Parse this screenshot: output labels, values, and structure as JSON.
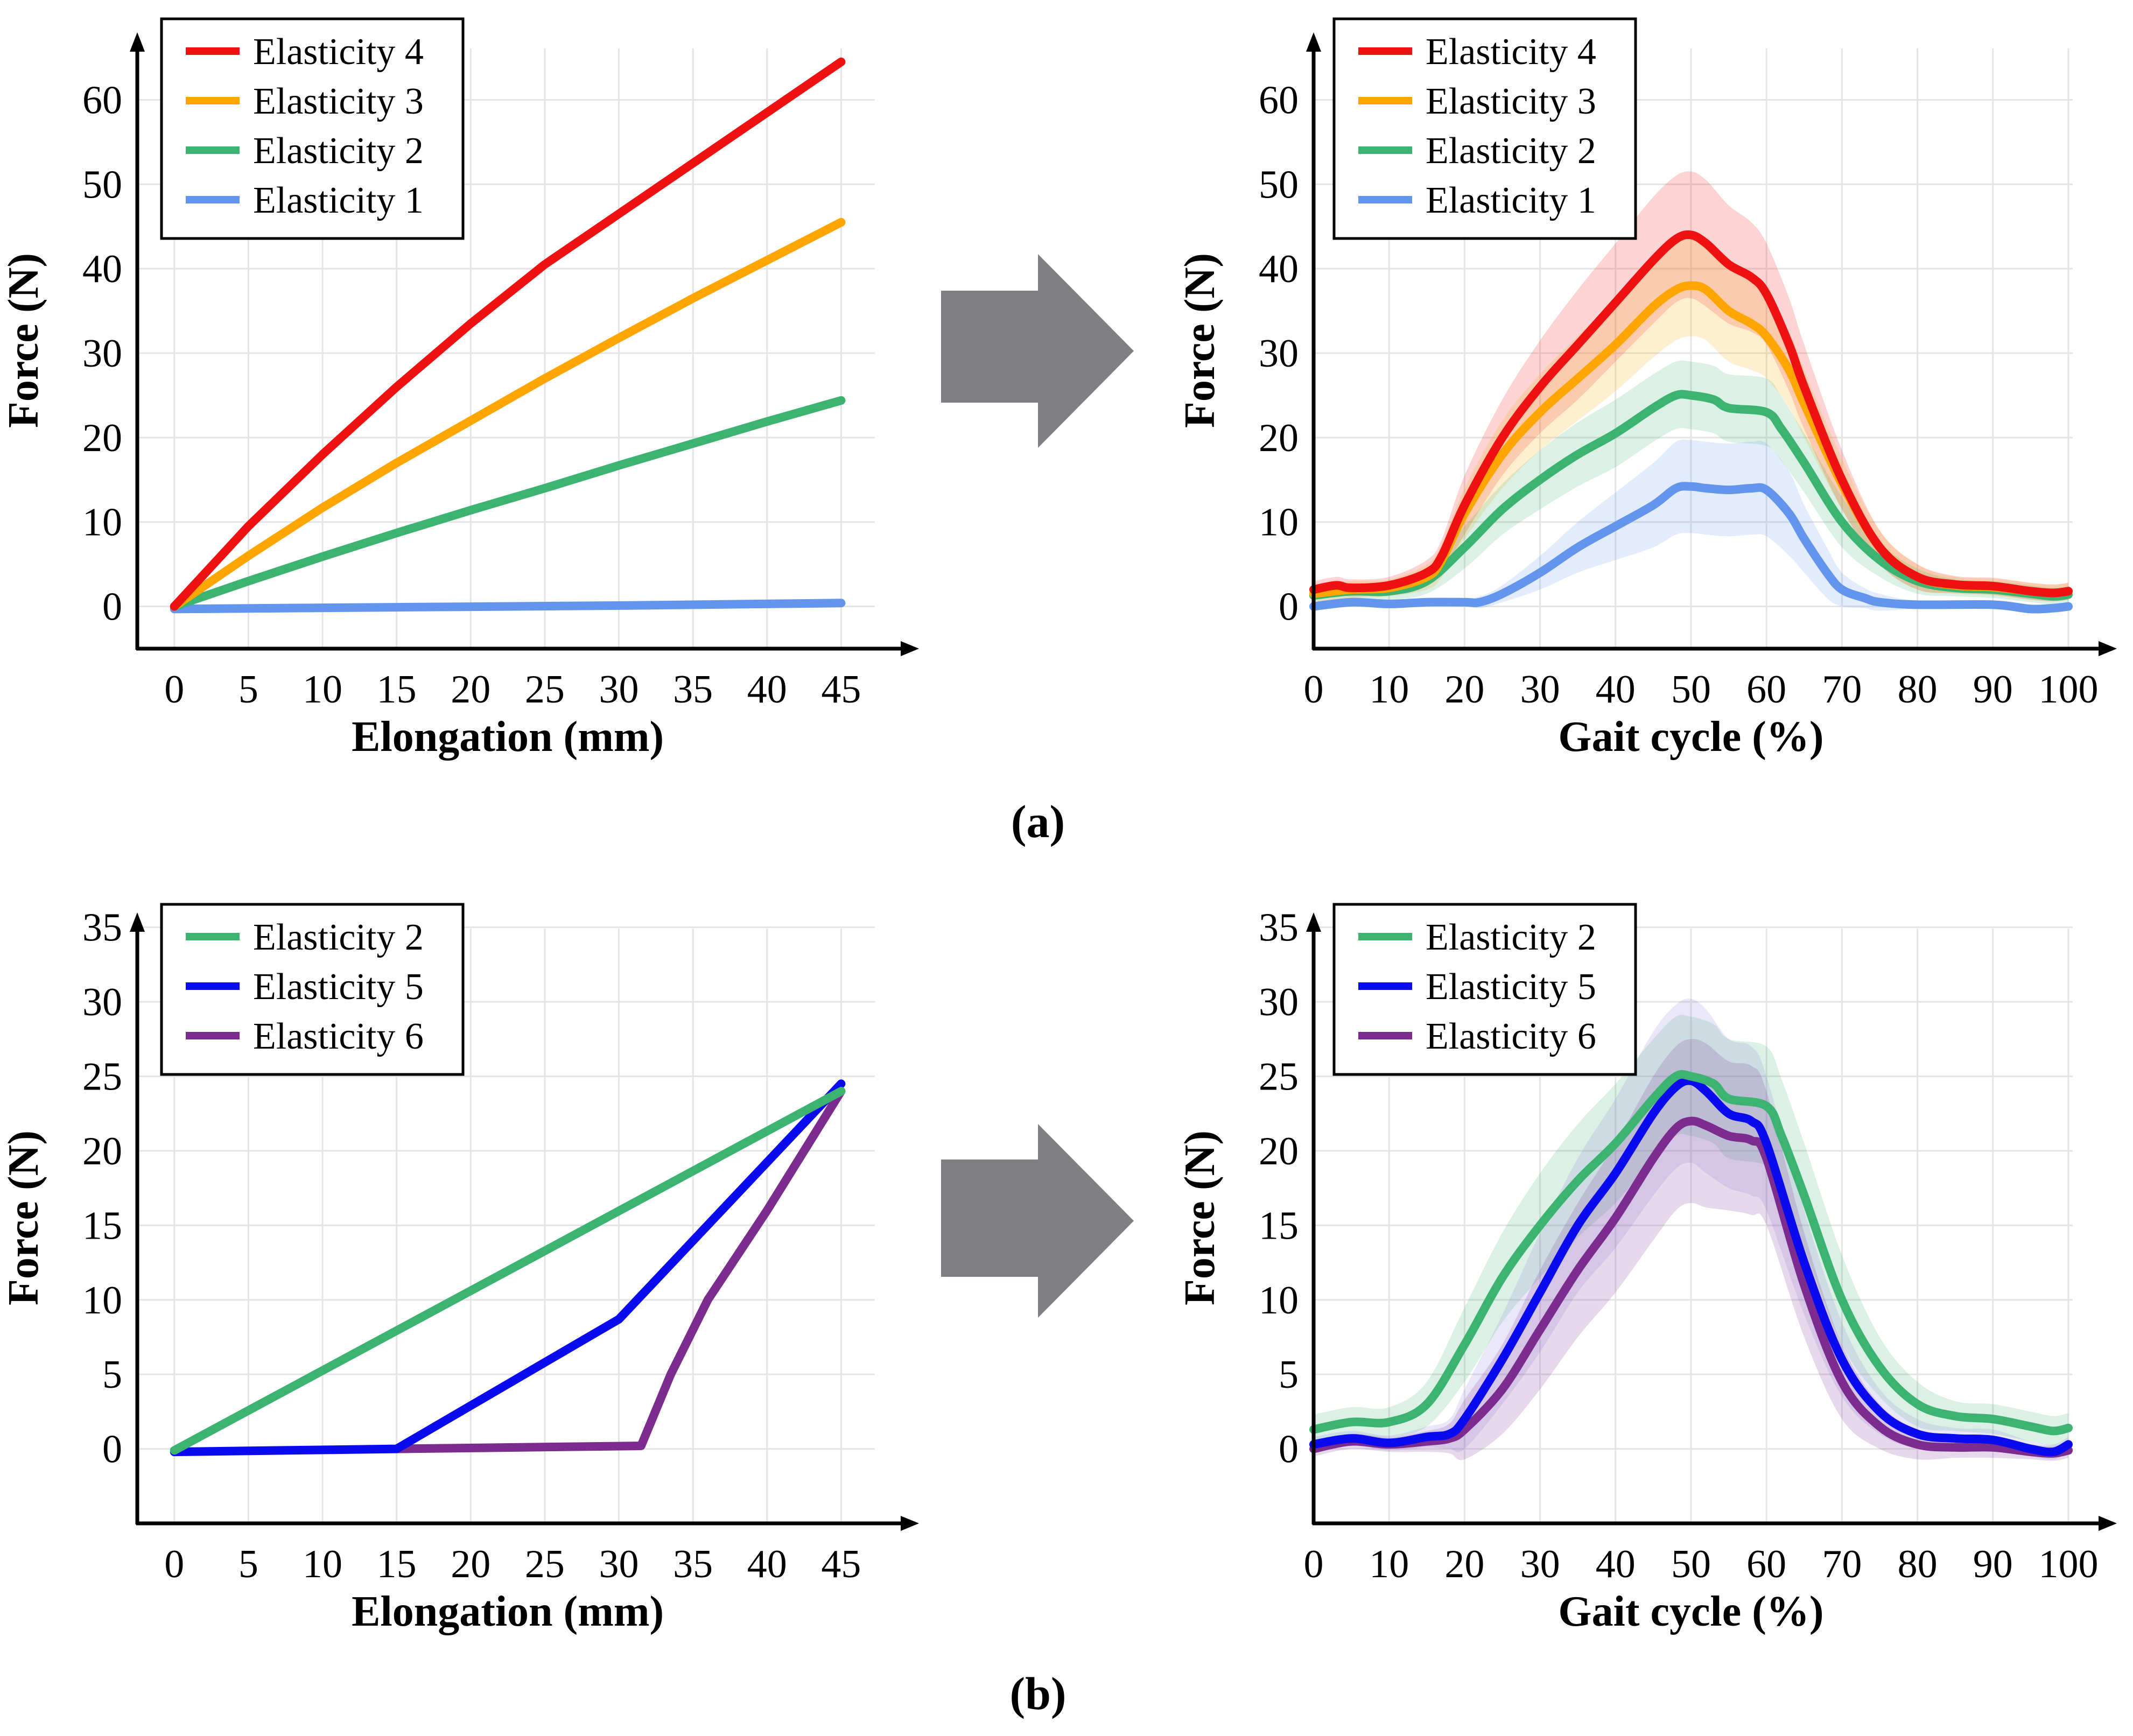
{
  "colors": {
    "elasticity_1": "#6495ED",
    "elasticity_2": "#3CB371",
    "elasticity_3": "#FFA500",
    "elasticity_4": "#EE1111",
    "elasticity_5": "#0A0AEE",
    "elasticity_6": "#7B2C8E",
    "arrow": "#808084"
  },
  "panel_labels": {
    "a": "(a)",
    "b": "(b)"
  },
  "chart_data": [
    {
      "id": "a-left",
      "type": "line",
      "xlabel": "Elongation (mm)",
      "ylabel": "Force (N)",
      "xlim": [
        -2.5,
        48
      ],
      "ylim": [
        -5,
        68
      ],
      "xticks": [
        0,
        5,
        10,
        15,
        20,
        25,
        30,
        35,
        40,
        45
      ],
      "yticks": [
        0,
        10,
        20,
        30,
        40,
        50,
        60
      ],
      "grid": true,
      "legend_position": "top-left",
      "series": [
        {
          "name": "Elasticity 4",
          "color_key": "elasticity_4",
          "x": [
            0,
            5,
            10,
            15,
            20,
            25,
            30,
            35,
            40,
            45
          ],
          "y": [
            0,
            9.5,
            18,
            26,
            33.5,
            40.5,
            46.5,
            52.5,
            58.5,
            64.5
          ]
        },
        {
          "name": "Elasticity 3",
          "color_key": "elasticity_3",
          "x": [
            0,
            5,
            10,
            15,
            20,
            25,
            30,
            35,
            40,
            45
          ],
          "y": [
            0,
            6,
            11.7,
            17,
            22,
            27,
            31.8,
            36.5,
            41,
            45.5
          ]
        },
        {
          "name": "Elasticity 2",
          "color_key": "elasticity_2",
          "x": [
            0,
            5,
            10,
            15,
            20,
            25,
            30,
            35,
            40,
            45
          ],
          "y": [
            0,
            3,
            5.9,
            8.7,
            11.4,
            14,
            16.7,
            19.3,
            21.9,
            24.4
          ]
        },
        {
          "name": "Elasticity 1",
          "color_key": "elasticity_1",
          "x": [
            0,
            15,
            30,
            45
          ],
          "y": [
            -0.3,
            -0.1,
            0.1,
            0.4
          ]
        }
      ]
    },
    {
      "id": "a-right",
      "type": "line",
      "xlabel": "Gait cycle (%)",
      "ylabel": "Force (N)",
      "xlim": [
        0,
        102
      ],
      "ylim": [
        -5,
        68
      ],
      "xticks": [
        0,
        10,
        20,
        30,
        40,
        50,
        60,
        70,
        80,
        90,
        100
      ],
      "yticks": [
        0,
        10,
        20,
        30,
        40,
        50,
        60
      ],
      "grid": true,
      "legend_position": "top-left",
      "series": [
        {
          "name": "Elasticity 4",
          "color_key": "elasticity_4",
          "x": [
            0,
            3,
            5,
            10,
            15,
            17,
            20,
            25,
            30,
            35,
            40,
            45,
            48,
            50,
            52,
            55,
            58,
            60,
            63,
            65,
            70,
            75,
            80,
            85,
            90,
            95,
            98,
            100
          ],
          "y": [
            2,
            2.5,
            2.2,
            2.5,
            4,
            6,
            12,
            20,
            26,
            31,
            36,
            41,
            43.5,
            44,
            43,
            40.5,
            39,
            37,
            31,
            26,
            15,
            7,
            3.5,
            2.6,
            2.4,
            1.8,
            1.6,
            1.8
          ],
          "sd": [
            1,
            1,
            1,
            1,
            1.5,
            2,
            3.5,
            4.5,
            5.5,
            6.5,
            7,
            7.5,
            7.5,
            7.5,
            7.5,
            7,
            6.5,
            6,
            5.5,
            5,
            3.5,
            2,
            1.5,
            1,
            1,
            1,
            1,
            1
          ]
        },
        {
          "name": "Elasticity 3",
          "color_key": "elasticity_3",
          "x": [
            0,
            5,
            10,
            15,
            17,
            20,
            25,
            30,
            35,
            40,
            45,
            48,
            50,
            52,
            55,
            58,
            60,
            63,
            65,
            70,
            75,
            80,
            85,
            90,
            95,
            98,
            100
          ],
          "y": [
            1.5,
            2,
            2.2,
            3.5,
            5.5,
            11,
            18,
            23,
            27,
            31,
            35.5,
            37.5,
            38,
            37.5,
            35,
            33.5,
            32,
            28,
            24,
            14.5,
            7,
            3.5,
            2.5,
            2.3,
            1.8,
            1.6,
            1.8
          ],
          "sd": [
            1,
            1,
            1,
            1.5,
            2,
            3,
            4,
            4.5,
            5,
            5.5,
            6,
            6,
            6,
            6,
            6,
            5.5,
            5,
            4.5,
            4,
            3,
            2,
            1.5,
            1,
            1,
            1,
            1,
            1
          ]
        },
        {
          "name": "Elasticity 2",
          "color_key": "elasticity_2",
          "x": [
            0,
            5,
            10,
            15,
            20,
            25,
            30,
            35,
            40,
            45,
            48,
            50,
            53,
            55,
            60,
            62,
            65,
            70,
            75,
            80,
            85,
            90,
            95,
            98,
            100
          ],
          "y": [
            1.3,
            1.8,
            1.8,
            3,
            7,
            11.5,
            15,
            18,
            20.5,
            23.5,
            25,
            25,
            24.5,
            23.5,
            23,
            21,
            17,
            10,
            5.5,
            3,
            2.2,
            2,
            1.5,
            1.2,
            1.4
          ],
          "sd": [
            1,
            1,
            1,
            1.5,
            2.5,
            3,
            3.5,
            3.8,
            4,
            4,
            4,
            4,
            4,
            4,
            4,
            3.8,
            3.5,
            3,
            2,
            1.5,
            1,
            1,
            1,
            1,
            1
          ]
        },
        {
          "name": "Elasticity 1",
          "color_key": "elasticity_1",
          "x": [
            0,
            5,
            10,
            15,
            20,
            22,
            25,
            30,
            35,
            40,
            45,
            48,
            50,
            52,
            55,
            58,
            60,
            63,
            65,
            68,
            70,
            73,
            75,
            80,
            90,
            95,
            98,
            100
          ],
          "y": [
            0,
            0.5,
            0.3,
            0.5,
            0.5,
            0.5,
            1.5,
            4,
            7,
            9.5,
            12,
            14,
            14.2,
            14,
            13.8,
            14,
            13.8,
            11,
            8,
            4,
            2,
            1,
            0.5,
            0.2,
            0.2,
            -0.3,
            -0.2,
            0
          ],
          "sd": [
            0.5,
            0.5,
            0.5,
            0.5,
            0.5,
            0.7,
            1,
            2,
            3,
            4,
            5,
            5.5,
            5.5,
            5.5,
            5.5,
            5.5,
            5.5,
            5,
            4,
            3,
            2,
            1.2,
            1,
            0.5,
            0.5,
            0.5,
            0.5,
            0.5
          ]
        }
      ]
    },
    {
      "id": "b-left",
      "type": "line",
      "xlabel": "Elongation (mm)",
      "ylabel": "Force (N)",
      "xlim": [
        -2.5,
        48
      ],
      "ylim": [
        -5,
        36
      ],
      "xticks": [
        0,
        5,
        10,
        15,
        20,
        25,
        30,
        35,
        40,
        45
      ],
      "yticks": [
        0,
        5,
        10,
        15,
        20,
        25,
        30,
        35
      ],
      "grid": true,
      "legend_position": "top-left",
      "series": [
        {
          "name": "Elasticity 2",
          "color_key": "elasticity_2",
          "x": [
            0,
            45
          ],
          "y": [
            -0.1,
            24
          ]
        },
        {
          "name": "Elasticity 5",
          "color_key": "elasticity_5",
          "x": [
            0,
            15,
            30,
            45
          ],
          "y": [
            -0.2,
            0,
            8.7,
            24.5
          ]
        },
        {
          "name": "Elasticity 6",
          "color_key": "elasticity_6",
          "x": [
            15,
            31.5,
            33.5,
            36,
            40,
            45
          ],
          "y": [
            0,
            0.2,
            5,
            10,
            16,
            24
          ]
        }
      ]
    },
    {
      "id": "b-right",
      "type": "line",
      "xlabel": "Gait cycle (%)",
      "ylabel": "Force (N)",
      "xlim": [
        0,
        102
      ],
      "ylim": [
        -5,
        36
      ],
      "xticks": [
        0,
        10,
        20,
        30,
        40,
        50,
        60,
        70,
        80,
        90,
        100
      ],
      "yticks": [
        0,
        5,
        10,
        15,
        20,
        25,
        30,
        35
      ],
      "grid": true,
      "legend_position": "top-left",
      "series": [
        {
          "name": "Elasticity 2",
          "color_key": "elasticity_2",
          "x": [
            0,
            5,
            10,
            15,
            20,
            25,
            30,
            35,
            40,
            45,
            48,
            50,
            53,
            55,
            60,
            62,
            65,
            70,
            75,
            80,
            85,
            90,
            95,
            98,
            100
          ],
          "y": [
            1.3,
            1.8,
            1.8,
            3,
            7,
            11.5,
            15,
            18,
            20.5,
            23.5,
            25,
            25,
            24.5,
            23.5,
            23,
            21,
            17,
            10,
            5.5,
            3,
            2.2,
            2,
            1.5,
            1.2,
            1.4
          ],
          "sd": [
            1,
            1,
            1,
            1.5,
            2.5,
            3,
            3.5,
            3.8,
            4,
            4,
            4,
            4,
            4,
            4,
            4,
            3.8,
            3.5,
            3,
            2,
            1.5,
            1,
            1,
            1,
            1,
            1
          ]
        },
        {
          "name": "Elasticity 5",
          "color_key": "elasticity_5",
          "x": [
            0,
            5,
            10,
            15,
            18,
            20,
            25,
            30,
            35,
            40,
            45,
            48,
            50,
            52,
            55,
            58,
            60,
            65,
            70,
            75,
            80,
            85,
            90,
            95,
            98,
            100
          ],
          "y": [
            0.3,
            0.7,
            0.4,
            0.8,
            1,
            2,
            6,
            10.5,
            15,
            18.5,
            22.5,
            24.3,
            24.7,
            24,
            22.5,
            22,
            20.5,
            12.5,
            6,
            2.5,
            1,
            0.7,
            0.6,
            0,
            -0.2,
            0.3
          ],
          "sd": [
            0.5,
            0.5,
            0.5,
            0.7,
            1,
            2,
            3,
            4,
            4.5,
            5,
            5.5,
            5.5,
            5.5,
            5.5,
            5,
            5,
            4.5,
            3.5,
            2.5,
            1.5,
            1,
            0.7,
            0.7,
            0.5,
            0.5,
            0.5
          ],
          "shade_color": "#8c7ce0"
        },
        {
          "name": "Elasticity 6",
          "color_key": "elasticity_6",
          "x": [
            0,
            5,
            10,
            15,
            18,
            20,
            25,
            30,
            35,
            40,
            45,
            48,
            50,
            52,
            55,
            58,
            60,
            65,
            70,
            75,
            80,
            85,
            90,
            95,
            98,
            100
          ],
          "y": [
            0,
            0.5,
            0.3,
            0.5,
            0.7,
            1.3,
            4,
            8,
            12,
            15.5,
            19.5,
            21.5,
            22,
            21.7,
            21,
            20.7,
            19.5,
            11,
            4.5,
            1.5,
            0.3,
            0.1,
            0.1,
            -0.2,
            -0.3,
            -0.1
          ],
          "sd": [
            0.5,
            0.5,
            0.5,
            0.7,
            1,
            2,
            3,
            4,
            4.5,
            5,
            5.5,
            5.5,
            5.5,
            5.5,
            5,
            5,
            4.5,
            3.5,
            2.5,
            1.5,
            1,
            0.7,
            0.7,
            0.5,
            0.5,
            0.5
          ]
        }
      ]
    }
  ]
}
